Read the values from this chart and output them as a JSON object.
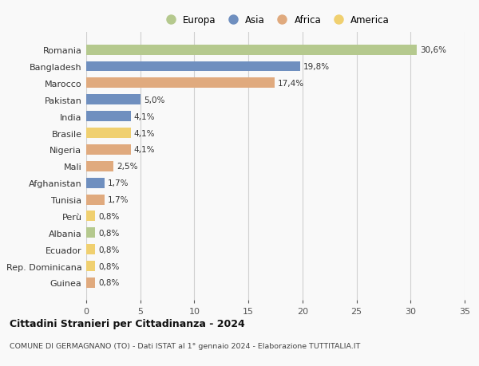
{
  "countries": [
    "Romania",
    "Bangladesh",
    "Marocco",
    "Pakistan",
    "India",
    "Brasile",
    "Nigeria",
    "Mali",
    "Afghanistan",
    "Tunisia",
    "Perù",
    "Albania",
    "Ecuador",
    "Rep. Dominicana",
    "Guinea"
  ],
  "values": [
    30.6,
    19.8,
    17.4,
    5.0,
    4.1,
    4.1,
    4.1,
    2.5,
    1.7,
    1.7,
    0.8,
    0.8,
    0.8,
    0.8,
    0.8
  ],
  "labels": [
    "30,6%",
    "19,8%",
    "17,4%",
    "5,0%",
    "4,1%",
    "4,1%",
    "4,1%",
    "2,5%",
    "1,7%",
    "1,7%",
    "0,8%",
    "0,8%",
    "0,8%",
    "0,8%",
    "0,8%"
  ],
  "continents": [
    "Europa",
    "Asia",
    "Africa",
    "Asia",
    "Asia",
    "America",
    "Africa",
    "Africa",
    "Asia",
    "Africa",
    "America",
    "Europa",
    "America",
    "America",
    "Africa"
  ],
  "colors": {
    "Europa": "#b5c98e",
    "Asia": "#6f8fbf",
    "Africa": "#e0aa7e",
    "America": "#f0d070"
  },
  "legend_order": [
    "Europa",
    "Asia",
    "Africa",
    "America"
  ],
  "xlim": [
    0,
    35
  ],
  "xticks": [
    0,
    5,
    10,
    15,
    20,
    25,
    30,
    35
  ],
  "title": "Cittadini Stranieri per Cittadinanza - 2024",
  "subtitle": "COMUNE DI GERMAGNANO (TO) - Dati ISTAT al 1° gennaio 2024 - Elaborazione TUTTITALIA.IT",
  "bg_color": "#f9f9f9",
  "grid_color": "#d0d0d0"
}
